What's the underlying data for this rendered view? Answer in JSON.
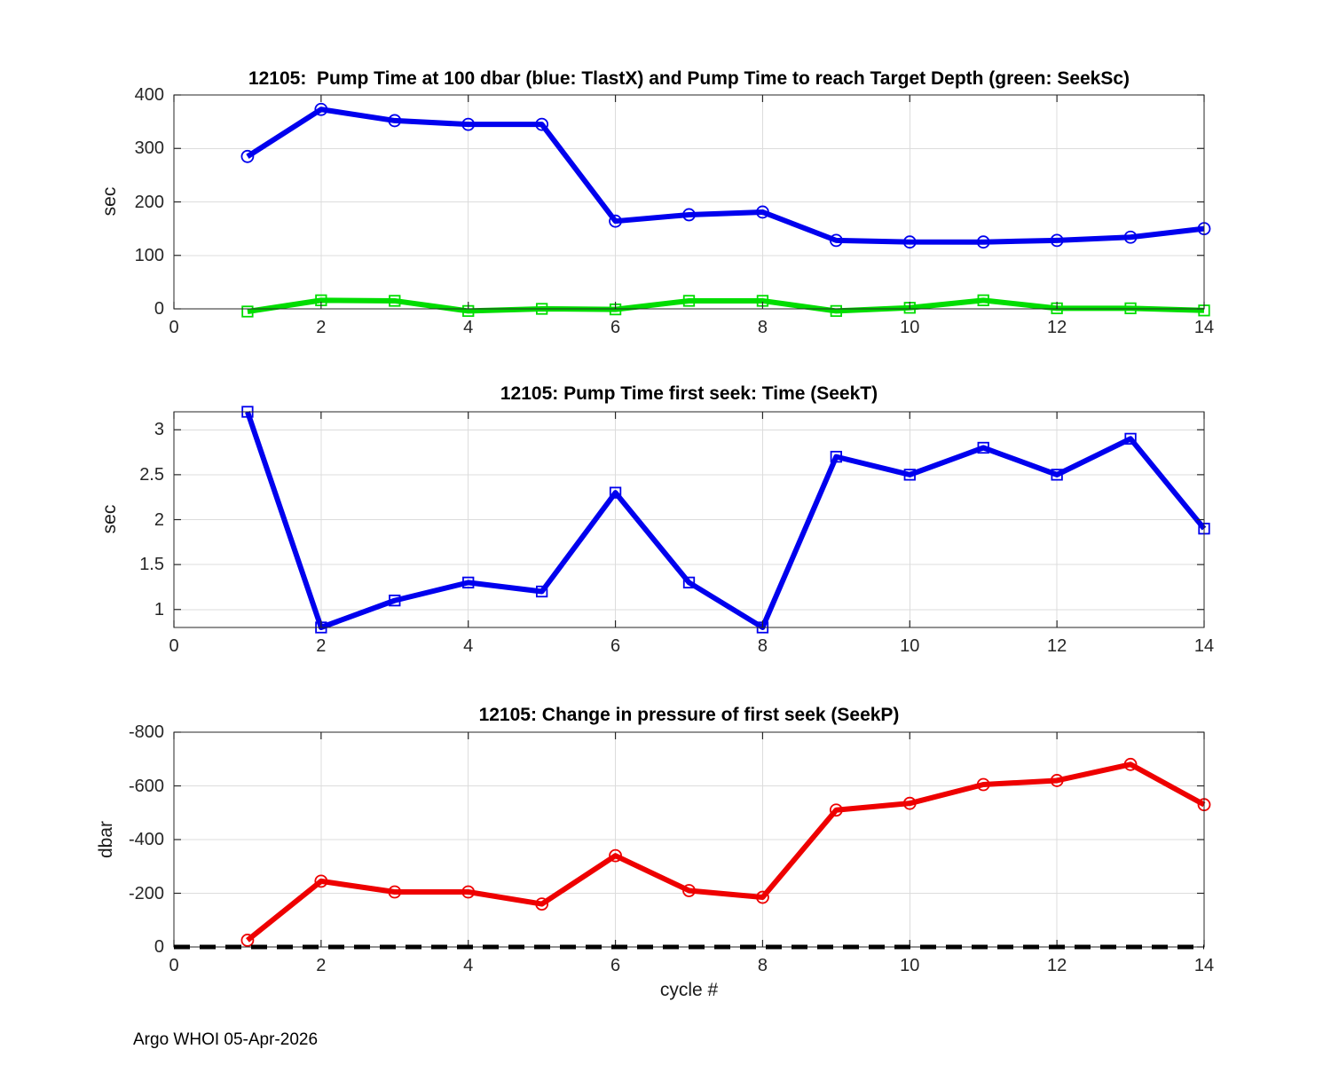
{
  "page": {
    "footer": "Argo WHOI 05-Apr-2026"
  },
  "colors": {
    "blue": "#0000ee",
    "green": "#00dd00",
    "red": "#ee0000",
    "axis": "#262626",
    "grid": "#dcdcdc",
    "zero_line": "#000000"
  },
  "chart_data": [
    {
      "type": "line",
      "title": "12105:  Pump Time at 100 dbar (blue: TlastX) and Pump Time to reach Target Depth (green: SeekSc)",
      "ylabel": "sec",
      "xlabel": "",
      "x": [
        1,
        2,
        3,
        4,
        5,
        6,
        7,
        8,
        9,
        10,
        11,
        12,
        13,
        14
      ],
      "series": [
        {
          "name": "TlastX",
          "color": "#0000ee",
          "marker": "circle",
          "values": [
            285,
            373,
            352,
            345,
            345,
            164,
            176,
            181,
            128,
            125,
            125,
            128,
            134,
            150
          ]
        },
        {
          "name": "SeekSc",
          "color": "#00dd00",
          "marker": "square",
          "values": [
            -5,
            16,
            15,
            -4,
            0,
            -1,
            15,
            15,
            -4,
            2,
            16,
            1,
            1,
            -3
          ]
        }
      ],
      "xlim": [
        0,
        14
      ],
      "ylim": [
        0,
        400
      ],
      "xticks": [
        0,
        2,
        4,
        6,
        8,
        10,
        12,
        14
      ],
      "yticks": [
        0,
        100,
        200,
        300,
        400
      ],
      "grid": true,
      "legend": "none"
    },
    {
      "type": "line",
      "title": "12105: Pump Time first seek: Time (SeekT)",
      "ylabel": "sec",
      "xlabel": "",
      "x": [
        1,
        2,
        3,
        4,
        5,
        6,
        7,
        8,
        9,
        10,
        11,
        12,
        13,
        14
      ],
      "series": [
        {
          "name": "SeekT",
          "color": "#0000ee",
          "marker": "square",
          "values": [
            3.2,
            0.8,
            1.1,
            1.3,
            1.2,
            2.3,
            1.3,
            0.8,
            2.7,
            2.5,
            2.8,
            2.5,
            2.9,
            1.9
          ]
        }
      ],
      "xlim": [
        0,
        14
      ],
      "ylim": [
        0.8,
        3.2
      ],
      "xticks": [
        0,
        2,
        4,
        6,
        8,
        10,
        12,
        14
      ],
      "yticks": [
        1,
        1.5,
        2,
        2.5,
        3
      ],
      "grid": true,
      "legend": "none"
    },
    {
      "type": "line",
      "title": "12105: Change in pressure of first seek (SeekP)",
      "ylabel": "dbar",
      "xlabel": "cycle #",
      "x": [
        1,
        2,
        3,
        4,
        5,
        6,
        7,
        8,
        9,
        10,
        11,
        12,
        13,
        14
      ],
      "series": [
        {
          "name": "SeekP",
          "color": "#ee0000",
          "marker": "circle",
          "values": [
            -25,
            -245,
            -205,
            -205,
            -160,
            -340,
            -210,
            -185,
            -510,
            -535,
            -605,
            -620,
            -680,
            -530
          ]
        }
      ],
      "xlim": [
        0,
        14
      ],
      "ylim": [
        -800,
        0
      ],
      "ydir": "reverse",
      "xticks": [
        0,
        2,
        4,
        6,
        8,
        10,
        12,
        14
      ],
      "yticks": [
        -800,
        -600,
        -400,
        -200,
        0
      ],
      "grid": true,
      "zero_line": {
        "y": 0,
        "style": "dashed",
        "color": "#000000"
      },
      "legend": "none"
    }
  ]
}
